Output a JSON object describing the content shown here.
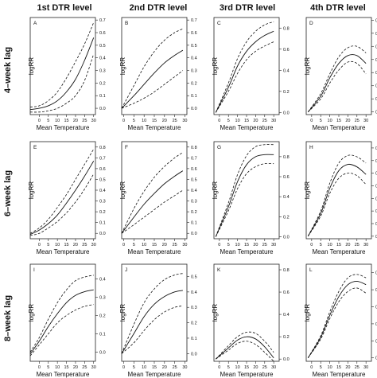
{
  "column_titles": [
    "1st DTR level",
    "2nd DTR level",
    "3rd DTR level",
    "4th DTR level"
  ],
  "row_titles": [
    "4–week lag",
    "6–week lag",
    "8–week lag"
  ],
  "chart_data": [
    {
      "panel": "A",
      "type": "line",
      "xlabel": "Mean Temperature",
      "ylabel": "logRR",
      "xlim": [
        -5,
        31
      ],
      "ylim": [
        -0.05,
        0.72
      ],
      "xticks": [
        0,
        5,
        10,
        15,
        20,
        25,
        30
      ],
      "yticks": [
        0.0,
        0.1,
        0.2,
        0.3,
        0.4,
        0.5,
        0.6,
        0.7
      ],
      "x": [
        -5,
        0,
        5,
        10,
        15,
        20,
        25,
        30
      ],
      "series": [
        {
          "values": [
            -0.01,
            0.0,
            0.02,
            0.06,
            0.13,
            0.23,
            0.38,
            0.56
          ],
          "style": "solid"
        },
        {
          "values": [
            0.01,
            0.02,
            0.06,
            0.13,
            0.24,
            0.37,
            0.51,
            0.68
          ],
          "style": "dashed"
        },
        {
          "values": [
            -0.03,
            -0.03,
            -0.02,
            0.0,
            0.04,
            0.1,
            0.22,
            0.43
          ],
          "style": "dashed"
        }
      ]
    },
    {
      "panel": "B",
      "type": "line",
      "xlabel": "Mean Temperature",
      "ylabel": "logRR",
      "xlim": [
        -1,
        31
      ],
      "ylim": [
        -0.05,
        0.72
      ],
      "xticks": [
        0,
        5,
        10,
        15,
        20,
        25,
        30
      ],
      "yticks": [
        0.0,
        0.1,
        0.2,
        0.3,
        0.4,
        0.5,
        0.6,
        0.7
      ],
      "x": [
        -1,
        5,
        10,
        15,
        20,
        25,
        29
      ],
      "series": [
        {
          "values": [
            0.0,
            0.1,
            0.19,
            0.28,
            0.36,
            0.42,
            0.46
          ],
          "style": "solid"
        },
        {
          "values": [
            0.0,
            0.18,
            0.33,
            0.45,
            0.54,
            0.6,
            0.63
          ],
          "style": "dashed"
        },
        {
          "values": [
            0.0,
            0.04,
            0.08,
            0.13,
            0.19,
            0.25,
            0.3
          ],
          "style": "dashed"
        }
      ]
    },
    {
      "panel": "C",
      "type": "line",
      "xlabel": "Mean Temperature",
      "ylabel": "logRR",
      "xlim": [
        -3,
        33
      ],
      "ylim": [
        -0.02,
        0.9
      ],
      "xticks": [
        0,
        5,
        10,
        15,
        20,
        25,
        30
      ],
      "yticks": [
        0.0,
        0.2,
        0.4,
        0.6,
        0.8
      ],
      "x": [
        -2,
        5,
        10,
        15,
        20,
        25,
        30
      ],
      "series": [
        {
          "values": [
            0.0,
            0.24,
            0.44,
            0.58,
            0.67,
            0.73,
            0.77
          ],
          "style": "solid"
        },
        {
          "values": [
            0.0,
            0.28,
            0.51,
            0.67,
            0.77,
            0.83,
            0.86
          ],
          "style": "dashed"
        },
        {
          "values": [
            0.0,
            0.2,
            0.37,
            0.5,
            0.58,
            0.63,
            0.67
          ],
          "style": "dashed"
        }
      ]
    },
    {
      "panel": "D",
      "type": "line",
      "xlabel": "Mean Temperature",
      "ylabel": "logRR",
      "xlim": [
        -3,
        33
      ],
      "ylim": [
        -0.02,
        0.72
      ],
      "xticks": [
        0,
        5,
        10,
        15,
        20,
        25,
        30
      ],
      "yticks": [
        0.0,
        0.1,
        0.2,
        0.3,
        0.4,
        0.5,
        0.6,
        0.7
      ],
      "x": [
        -2,
        5,
        10,
        15,
        20,
        25,
        30
      ],
      "series": [
        {
          "values": [
            0.0,
            0.12,
            0.26,
            0.37,
            0.43,
            0.43,
            0.37
          ],
          "style": "solid"
        },
        {
          "values": [
            0.0,
            0.14,
            0.29,
            0.42,
            0.49,
            0.5,
            0.45
          ],
          "style": "dashed"
        },
        {
          "values": [
            0.0,
            0.1,
            0.22,
            0.32,
            0.38,
            0.37,
            0.29
          ],
          "style": "dashed"
        }
      ]
    },
    {
      "panel": "E",
      "type": "line",
      "xlabel": "Mean Temperature",
      "ylabel": "logRR",
      "xlim": [
        -5,
        31
      ],
      "ylim": [
        -0.05,
        0.85
      ],
      "xticks": [
        0,
        5,
        10,
        15,
        20,
        25,
        30
      ],
      "yticks": [
        0.0,
        0.1,
        0.2,
        0.3,
        0.4,
        0.5,
        0.6,
        0.7,
        0.8
      ],
      "x": [
        -5,
        0,
        5,
        10,
        15,
        20,
        25,
        30
      ],
      "series": [
        {
          "values": [
            -0.01,
            0.03,
            0.09,
            0.17,
            0.28,
            0.4,
            0.53,
            0.67
          ],
          "style": "solid"
        },
        {
          "values": [
            0.0,
            0.05,
            0.13,
            0.24,
            0.36,
            0.5,
            0.64,
            0.78
          ],
          "style": "dashed"
        },
        {
          "values": [
            -0.02,
            0.0,
            0.05,
            0.11,
            0.19,
            0.29,
            0.41,
            0.55
          ],
          "style": "dashed"
        }
      ]
    },
    {
      "panel": "F",
      "type": "line",
      "xlabel": "Mean Temperature",
      "ylabel": "logRR",
      "xlim": [
        -1,
        31
      ],
      "ylim": [
        -0.05,
        0.85
      ],
      "xticks": [
        0,
        5,
        10,
        15,
        20,
        25,
        30
      ],
      "yticks": [
        0.0,
        0.1,
        0.2,
        0.3,
        0.4,
        0.5,
        0.6,
        0.7,
        0.8
      ],
      "x": [
        -1,
        5,
        10,
        15,
        20,
        25,
        29
      ],
      "series": [
        {
          "values": [
            0.0,
            0.15,
            0.27,
            0.37,
            0.46,
            0.53,
            0.58
          ],
          "style": "solid"
        },
        {
          "values": [
            0.0,
            0.23,
            0.39,
            0.52,
            0.62,
            0.7,
            0.75
          ],
          "style": "dashed"
        },
        {
          "values": [
            0.0,
            0.08,
            0.15,
            0.22,
            0.29,
            0.35,
            0.4
          ],
          "style": "dashed"
        }
      ]
    },
    {
      "panel": "G",
      "type": "line",
      "xlabel": "Mean Temperature",
      "ylabel": "logRR",
      "xlim": [
        -3,
        33
      ],
      "ylim": [
        -0.02,
        0.95
      ],
      "xticks": [
        0,
        5,
        10,
        15,
        20,
        25,
        30
      ],
      "yticks": [
        0.0,
        0.2,
        0.4,
        0.6,
        0.8
      ],
      "x": [
        -2,
        5,
        10,
        15,
        20,
        25,
        30
      ],
      "series": [
        {
          "values": [
            0.0,
            0.3,
            0.55,
            0.72,
            0.8,
            0.82,
            0.82
          ],
          "style": "solid"
        },
        {
          "values": [
            0.0,
            0.34,
            0.62,
            0.81,
            0.9,
            0.92,
            0.92
          ],
          "style": "dashed"
        },
        {
          "values": [
            0.0,
            0.26,
            0.48,
            0.63,
            0.7,
            0.73,
            0.73
          ],
          "style": "dashed"
        }
      ]
    },
    {
      "panel": "H",
      "type": "line",
      "xlabel": "Mean Temperature",
      "ylabel": "logRR",
      "xlim": [
        -3,
        33
      ],
      "ylim": [
        -0.02,
        0.75
      ],
      "xticks": [
        0,
        5,
        10,
        15,
        20,
        25,
        30
      ],
      "yticks": [
        0.0,
        0.1,
        0.2,
        0.3,
        0.4,
        0.5,
        0.6,
        0.7
      ],
      "x": [
        -2,
        5,
        10,
        15,
        20,
        25,
        30
      ],
      "series": [
        {
          "values": [
            0.0,
            0.18,
            0.38,
            0.52,
            0.57,
            0.55,
            0.49
          ],
          "style": "solid"
        },
        {
          "values": [
            0.0,
            0.2,
            0.42,
            0.58,
            0.64,
            0.63,
            0.58
          ],
          "style": "dashed"
        },
        {
          "values": [
            0.0,
            0.16,
            0.34,
            0.46,
            0.5,
            0.48,
            0.41
          ],
          "style": "dashed"
        }
      ]
    },
    {
      "panel": "I",
      "type": "line",
      "xlabel": "Mean Temperature",
      "ylabel": "logRR",
      "xlim": [
        -5,
        31
      ],
      "ylim": [
        -0.05,
        0.48
      ],
      "xticks": [
        0,
        5,
        10,
        15,
        20,
        25,
        30
      ],
      "yticks": [
        0.0,
        0.1,
        0.2,
        0.3,
        0.4
      ],
      "x": [
        -5,
        0,
        5,
        10,
        15,
        20,
        25,
        30
      ],
      "series": [
        {
          "values": [
            -0.01,
            0.06,
            0.14,
            0.21,
            0.27,
            0.31,
            0.33,
            0.34
          ],
          "style": "solid"
        },
        {
          "values": [
            0.0,
            0.08,
            0.18,
            0.27,
            0.34,
            0.39,
            0.41,
            0.42
          ],
          "style": "dashed"
        },
        {
          "values": [
            -0.02,
            0.04,
            0.1,
            0.16,
            0.2,
            0.23,
            0.25,
            0.26
          ],
          "style": "dashed"
        }
      ]
    },
    {
      "panel": "J",
      "type": "line",
      "xlabel": "Mean Temperature",
      "ylabel": "logRR",
      "xlim": [
        -1,
        31
      ],
      "ylim": [
        -0.05,
        0.58
      ],
      "xticks": [
        0,
        5,
        10,
        15,
        20,
        25,
        30
      ],
      "yticks": [
        0.0,
        0.1,
        0.2,
        0.3,
        0.4,
        0.5
      ],
      "x": [
        -1,
        5,
        10,
        15,
        20,
        25,
        29
      ],
      "series": [
        {
          "values": [
            0.0,
            0.13,
            0.24,
            0.32,
            0.37,
            0.4,
            0.41
          ],
          "style": "solid"
        },
        {
          "values": [
            0.0,
            0.19,
            0.33,
            0.42,
            0.48,
            0.51,
            0.52
          ],
          "style": "dashed"
        },
        {
          "values": [
            0.0,
            0.07,
            0.15,
            0.22,
            0.27,
            0.3,
            0.31
          ],
          "style": "dashed"
        }
      ]
    },
    {
      "panel": "K",
      "type": "line",
      "xlabel": "Mean Temperature",
      "ylabel": "logRR",
      "xlim": [
        -3,
        33
      ],
      "ylim": [
        -0.02,
        0.85
      ],
      "xticks": [
        0,
        5,
        10,
        15,
        20,
        25,
        30
      ],
      "yticks": [
        0.0,
        0.2,
        0.4,
        0.6,
        0.8
      ],
      "x": [
        -2,
        5,
        10,
        15,
        20,
        25,
        30
      ],
      "series": [
        {
          "values": [
            0.0,
            0.1,
            0.17,
            0.2,
            0.18,
            0.11,
            0.01
          ],
          "style": "solid"
        },
        {
          "values": [
            0.0,
            0.12,
            0.2,
            0.24,
            0.23,
            0.16,
            0.06
          ],
          "style": "dashed"
        },
        {
          "values": [
            0.0,
            0.08,
            0.14,
            0.16,
            0.13,
            0.06,
            -0.02
          ],
          "style": "dashed"
        }
      ]
    },
    {
      "panel": "L",
      "type": "line",
      "xlabel": "Mean Temperature",
      "ylabel": "logRR",
      "xlim": [
        -3,
        33
      ],
      "ylim": [
        -0.02,
        0.55
      ],
      "xticks": [
        0,
        5,
        10,
        15,
        20,
        25,
        30
      ],
      "yticks": [
        0.0,
        0.1,
        0.2,
        0.3,
        0.4,
        0.5
      ],
      "x": [
        -2,
        5,
        10,
        15,
        20,
        25,
        30
      ],
      "series": [
        {
          "values": [
            0.0,
            0.12,
            0.25,
            0.36,
            0.43,
            0.45,
            0.43
          ],
          "style": "solid"
        },
        {
          "values": [
            0.0,
            0.13,
            0.27,
            0.39,
            0.47,
            0.49,
            0.47
          ],
          "style": "dashed"
        },
        {
          "values": [
            0.0,
            0.11,
            0.23,
            0.33,
            0.39,
            0.41,
            0.38
          ],
          "style": "dashed"
        }
      ]
    }
  ]
}
